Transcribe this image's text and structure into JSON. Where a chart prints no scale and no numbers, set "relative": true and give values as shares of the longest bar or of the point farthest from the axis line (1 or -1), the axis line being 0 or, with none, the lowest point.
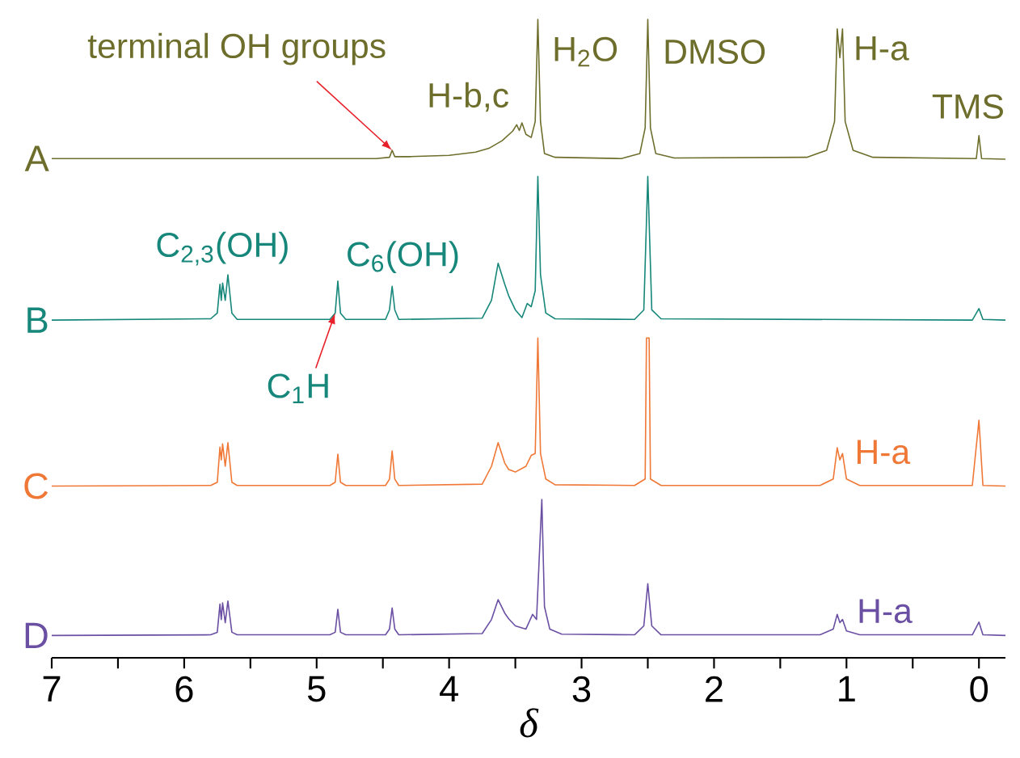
{
  "chart_data": {
    "type": "line",
    "relative": true,
    "xlabel": "δ",
    "xlim": [
      7,
      -0.2
    ],
    "xticks": [
      7,
      {
        "value": 6.5,
        "label": null
      },
      6,
      {
        "value": 5.5,
        "label": null
      },
      5,
      {
        "value": 4.5,
        "label": null
      },
      4,
      {
        "value": 3.5,
        "label": null
      },
      3,
      {
        "value": 2.5,
        "label": null
      },
      2,
      {
        "value": 1.5,
        "label": null
      },
      1,
      {
        "value": 0.5,
        "label": null
      },
      0
    ],
    "legend": false,
    "series": [
      {
        "name": "A",
        "color": "#6e6e2c",
        "x": [
          7.0,
          4.55,
          4.45,
          4.43,
          4.41,
          4.3,
          4.0,
          3.8,
          3.7,
          3.6,
          3.52,
          3.49,
          3.47,
          3.45,
          3.42,
          3.38,
          3.35,
          3.33,
          3.31,
          3.28,
          3.2,
          2.7,
          2.56,
          2.52,
          2.5,
          2.48,
          2.44,
          2.3,
          1.3,
          1.15,
          1.09,
          1.07,
          1.05,
          1.03,
          1.01,
          0.95,
          0.8,
          0.02,
          0.0,
          -0.02,
          -0.2
        ],
        "values": [
          0.782,
          0.782,
          0.784,
          0.795,
          0.785,
          0.785,
          0.787,
          0.792,
          0.798,
          0.81,
          0.825,
          0.835,
          0.826,
          0.838,
          0.82,
          0.815,
          0.84,
          1.0,
          0.84,
          0.79,
          0.784,
          0.782,
          0.79,
          0.83,
          1.0,
          0.83,
          0.79,
          0.783,
          0.784,
          0.795,
          0.84,
          0.985,
          0.94,
          0.985,
          0.84,
          0.795,
          0.784,
          0.782,
          0.818,
          0.782,
          0.781
        ]
      },
      {
        "name": "B",
        "color": "#16877a",
        "x": [
          7.0,
          5.8,
          5.75,
          5.73,
          5.72,
          5.71,
          5.69,
          5.67,
          5.64,
          5.6,
          4.9,
          4.86,
          4.84,
          4.82,
          4.78,
          4.48,
          4.45,
          4.43,
          4.41,
          4.38,
          3.75,
          3.68,
          3.63,
          3.58,
          3.55,
          3.5,
          3.45,
          3.41,
          3.38,
          3.35,
          3.33,
          3.31,
          3.27,
          3.2,
          2.6,
          2.53,
          2.5,
          2.47,
          2.4,
          0.05,
          0.0,
          -0.03,
          -0.2
        ],
        "values": [
          0.529,
          0.531,
          0.54,
          0.585,
          0.56,
          0.587,
          0.56,
          0.6,
          0.54,
          0.53,
          0.53,
          0.54,
          0.59,
          0.54,
          0.53,
          0.53,
          0.545,
          0.582,
          0.545,
          0.53,
          0.532,
          0.56,
          0.618,
          0.585,
          0.567,
          0.545,
          0.533,
          0.555,
          0.55,
          0.575,
          0.754,
          0.6,
          0.54,
          0.531,
          0.53,
          0.545,
          0.754,
          0.545,
          0.531,
          0.529,
          0.547,
          0.53,
          0.529
        ]
      },
      {
        "name": "C",
        "color": "#f07836",
        "x": [
          7.0,
          5.8,
          5.75,
          5.73,
          5.72,
          5.71,
          5.69,
          5.67,
          5.64,
          5.6,
          4.9,
          4.86,
          4.84,
          4.82,
          4.78,
          4.48,
          4.45,
          4.43,
          4.41,
          4.38,
          3.75,
          3.68,
          3.63,
          3.58,
          3.55,
          3.5,
          3.42,
          3.38,
          3.35,
          3.33,
          3.31,
          3.27,
          3.2,
          2.6,
          2.52,
          2.51,
          2.49,
          2.48,
          2.4,
          1.2,
          1.1,
          1.07,
          1.05,
          1.03,
          1.0,
          0.9,
          0.05,
          0.0,
          -0.03,
          -0.2
        ],
        "values": [
          0.269,
          0.27,
          0.275,
          0.33,
          0.31,
          0.335,
          0.3,
          0.337,
          0.275,
          0.27,
          0.27,
          0.275,
          0.319,
          0.275,
          0.27,
          0.27,
          0.28,
          0.324,
          0.28,
          0.27,
          0.272,
          0.3,
          0.337,
          0.305,
          0.295,
          0.291,
          0.3,
          0.317,
          0.32,
          0.501,
          0.32,
          0.28,
          0.271,
          0.27,
          0.28,
          0.501,
          0.501,
          0.28,
          0.27,
          0.27,
          0.28,
          0.329,
          0.31,
          0.32,
          0.28,
          0.27,
          0.27,
          0.372,
          0.27,
          0.269
        ]
      },
      {
        "name": "D",
        "color": "#6a4fa3",
        "x": [
          7.0,
          5.8,
          5.75,
          5.73,
          5.72,
          5.71,
          5.69,
          5.67,
          5.64,
          5.6,
          4.9,
          4.86,
          4.84,
          4.82,
          4.78,
          4.48,
          4.45,
          4.43,
          4.41,
          4.38,
          3.75,
          3.68,
          3.63,
          3.58,
          3.55,
          3.5,
          3.42,
          3.37,
          3.34,
          3.3,
          3.28,
          3.24,
          3.15,
          2.6,
          2.53,
          2.5,
          2.47,
          2.4,
          1.2,
          1.1,
          1.07,
          1.05,
          1.03,
          1.0,
          0.9,
          0.05,
          0.0,
          -0.03,
          -0.2
        ],
        "values": [
          0.035,
          0.036,
          0.04,
          0.084,
          0.06,
          0.086,
          0.055,
          0.089,
          0.04,
          0.036,
          0.036,
          0.04,
          0.076,
          0.04,
          0.036,
          0.036,
          0.045,
          0.078,
          0.045,
          0.036,
          0.038,
          0.06,
          0.091,
          0.07,
          0.061,
          0.05,
          0.045,
          0.068,
          0.06,
          0.248,
          0.08,
          0.045,
          0.037,
          0.036,
          0.05,
          0.116,
          0.05,
          0.036,
          0.036,
          0.045,
          0.068,
          0.055,
          0.06,
          0.042,
          0.036,
          0.036,
          0.056,
          0.036,
          0.035
        ]
      }
    ],
    "annotations": [
      {
        "text": "terminal OH groups",
        "x": 4.43,
        "y": 0.795
      },
      {
        "text": "H-b,c",
        "x": 3.45,
        "y": 0.838
      },
      {
        "text": "H$_{2}$O",
        "x": 3.33,
        "y": 1.0
      },
      {
        "text": "DMSO",
        "x": 2.5,
        "y": 1.0
      },
      {
        "text": "H-a",
        "x": 1.03,
        "y": 0.985
      },
      {
        "text": "TMS",
        "x": 0.0,
        "y": 0.818
      },
      {
        "text": "C$_{2,3}$(OH)",
        "x": 5.71,
        "y": 0.587
      },
      {
        "text": "C$_{6}$(OH)",
        "x": 4.43,
        "y": 0.582
      },
      {
        "text": "C$_{1}$H",
        "x": 4.86,
        "y": 0.54
      },
      {
        "text": "H-a",
        "x": 1.07,
        "y": 0.329
      },
      {
        "text": "H-a",
        "x": 1.07,
        "y": 0.068
      }
    ]
  }
}
